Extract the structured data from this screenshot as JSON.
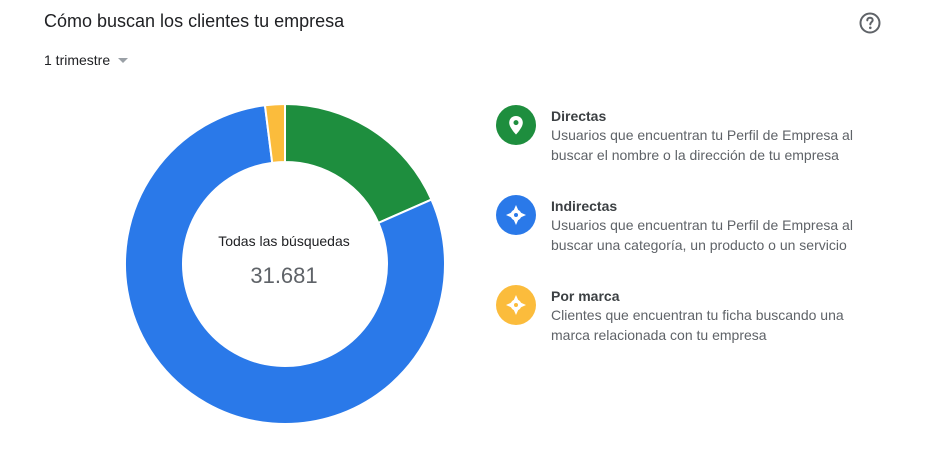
{
  "header": {
    "title": "Cómo buscan los clientes tu empresa",
    "help_icon": "help-circle-icon",
    "period_selector": {
      "selected": "1 trimestre",
      "icon": "caret-down-icon"
    }
  },
  "chart_data": {
    "type": "pie",
    "style": "donut",
    "center_label": "Todas las búsquedas",
    "total_display": "31.681",
    "total": 31681,
    "categories": [
      "Directas",
      "Indirectas",
      "Por marca"
    ],
    "values": [
      5830,
      25217,
      634
    ],
    "colors": [
      "#1e8e3e",
      "#2a79e9",
      "#fbbc3c"
    ],
    "legend_placement": "right",
    "series": [
      {
        "name": "Directas",
        "value": 5830,
        "color": "#1e8e3e",
        "description": "Usuarios que encuentran tu Perfil de Empresa al buscar el nombre o la dirección de tu empresa",
        "icon": "map-pin-icon"
      },
      {
        "name": "Indirectas",
        "value": 25217,
        "color": "#2a79e9",
        "description": "Usuarios que encuentran tu Perfil de Empresa al buscar una categoría, un producto o un servicio",
        "icon": "compass-icon"
      },
      {
        "name": "Por marca",
        "value": 634,
        "color": "#fbbc3c",
        "description": "Clientes que encuentran tu ficha buscando una marca relacionada con tu empresa",
        "icon": "compass-icon"
      }
    ]
  },
  "legend": {
    "items": [
      {
        "label": "Directas",
        "desc_line1": "Usuarios que encuentran tu Perfil de Empresa al",
        "desc_line2": "buscar el nombre o la dirección de tu empresa"
      },
      {
        "label": "Indirectas",
        "desc_line1": "Usuarios que encuentran tu Perfil de Empresa al",
        "desc_line2": "buscar una categoría, un producto o un servicio"
      },
      {
        "label": "Por marca",
        "desc_line1": "Clientes que encuentran tu ficha buscando una",
        "desc_line2": "marca relacionada con tu empresa"
      }
    ]
  }
}
